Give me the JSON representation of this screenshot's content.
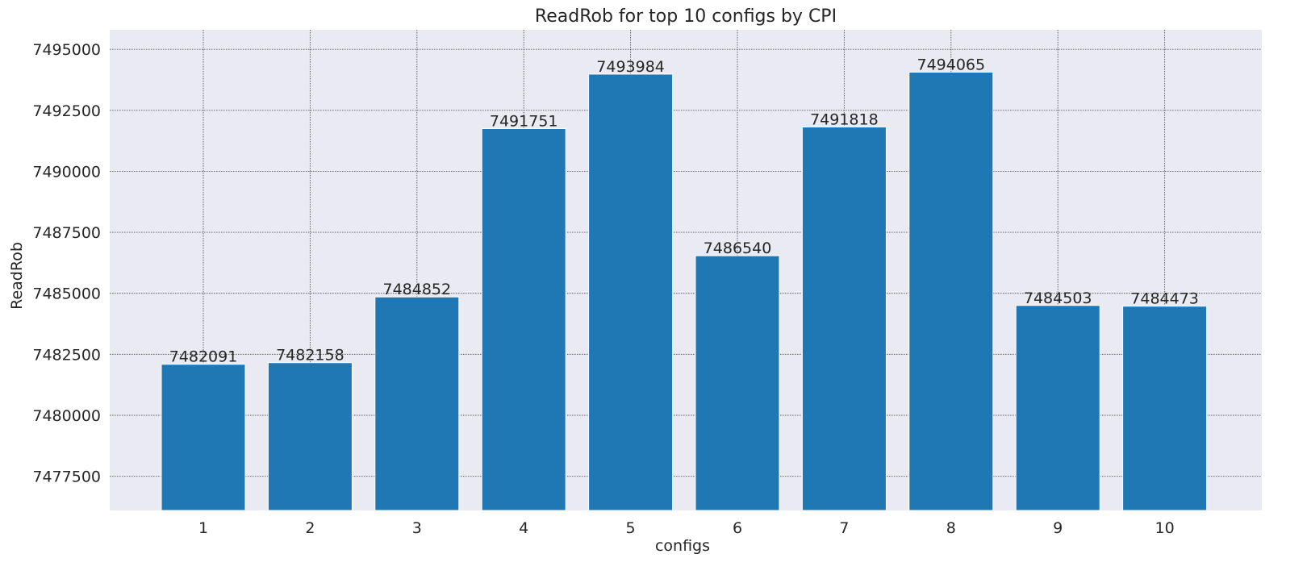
{
  "chart_data": {
    "type": "bar",
    "title": "ReadRob for top 10 configs by CPI",
    "xlabel": "configs",
    "ylabel": "ReadRob",
    "categories": [
      "1",
      "2",
      "3",
      "4",
      "5",
      "6",
      "7",
      "8",
      "9",
      "10"
    ],
    "values": [
      7482091,
      7482158,
      7484852,
      7491751,
      7493984,
      7486540,
      7491818,
      7494065,
      7484503,
      7484473
    ],
    "data_labels": [
      "7482091",
      "7482158",
      "7484852",
      "7491751",
      "7493984",
      "7486540",
      "7491818",
      "7494065",
      "7484503",
      "7484473"
    ],
    "ylim": [
      7476100,
      7495800
    ],
    "yticks": [
      7477500,
      7480000,
      7482500,
      7485000,
      7487500,
      7490000,
      7492500,
      7495000
    ],
    "ytick_labels": [
      "7477500",
      "7480000",
      "7482500",
      "7485000",
      "7487500",
      "7490000",
      "7492500",
      "7495000"
    ],
    "grid": true,
    "legend": "none",
    "colors": {
      "bar": "#1f77b4",
      "plot_background": "#eaeaf2",
      "grid": "#555555",
      "text": "#262626"
    }
  }
}
